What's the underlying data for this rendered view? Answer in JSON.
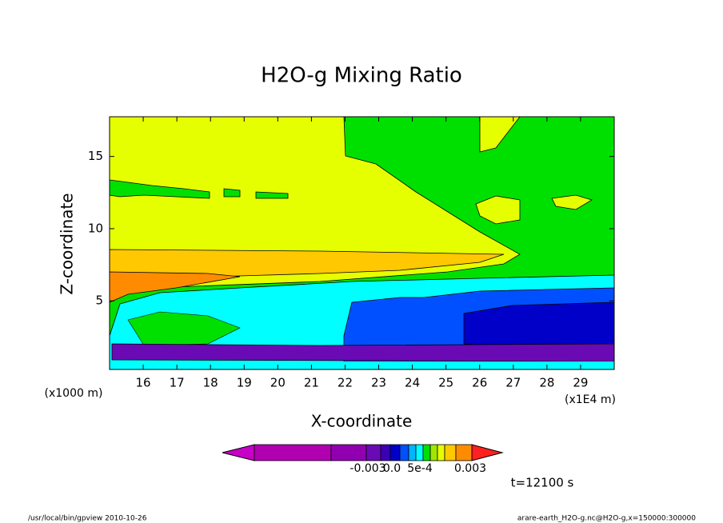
{
  "chart_data": {
    "type": "contour",
    "title": "H2O-g Mixing Ratio",
    "x_label": "X-coordinate",
    "y_label": "Z-coordinate",
    "x_unit": "(x1E4 m)",
    "y_unit": "(x1000 m)",
    "xlim": [
      15,
      30
    ],
    "xticks": [
      16,
      17,
      18,
      19,
      20,
      21,
      22,
      23,
      24,
      25,
      26,
      27,
      28,
      29
    ],
    "ylim": [
      0.25,
      17.75
    ],
    "yticks": [
      5,
      10,
      15
    ],
    "colorbar": {
      "colors": [
        "#c800c8",
        "#b000b0",
        "#9000b0",
        "#6a0ab4",
        "#3c00b4",
        "#0000c8",
        "#0050ff",
        "#00b4ff",
        "#00ffff",
        "#00e000",
        "#a0e600",
        "#e6ff00",
        "#ffc800",
        "#ff8c00",
        "#ff2020"
      ],
      "labels": [
        "-0.003",
        "0.0",
        "5e-4",
        "0.003"
      ]
    },
    "annotation": "t=12100 s"
  },
  "footer": {
    "left": "/usr/local/bin/gpview  2010-10-26",
    "right": "arare-earth_H2O-g.nc@H2O-g,x=150000:300000"
  }
}
